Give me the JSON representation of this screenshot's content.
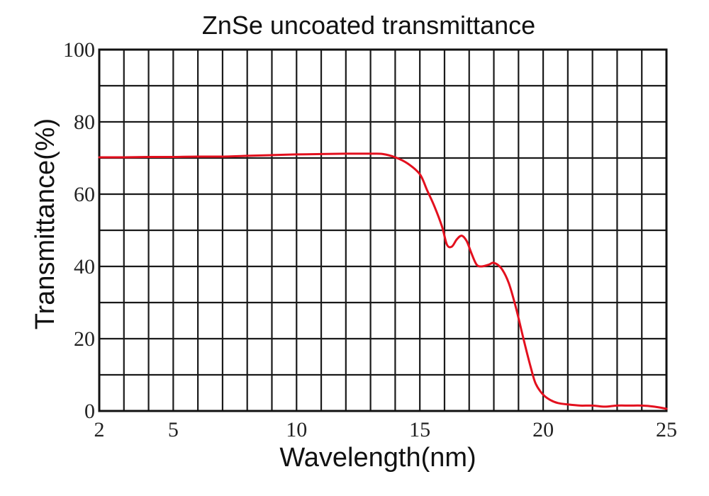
{
  "chart_data": {
    "type": "line",
    "title": "ZnSe uncoated transmittance",
    "xlabel": "Wavelength(nm)",
    "ylabel": "Transmittance(%)",
    "xlim": [
      2,
      25
    ],
    "ylim": [
      0,
      100
    ],
    "x_ticks": [
      "2",
      "5",
      "10",
      "15",
      "20",
      "25"
    ],
    "y_ticks": [
      "0",
      "20",
      "40",
      "60",
      "80",
      "100"
    ],
    "grid": true,
    "legend": "none",
    "colors": {
      "line": "#e3101e",
      "grid": "#1a1a1a",
      "text": "#111111"
    },
    "series": [
      {
        "x": [
          2,
          3,
          4,
          5,
          6,
          7,
          8,
          9,
          10,
          11,
          12,
          13,
          13.5,
          14,
          14.5,
          15,
          15.3,
          15.6,
          15.9,
          16.1,
          16.3,
          16.5,
          16.7,
          16.9,
          17.1,
          17.3,
          17.5,
          17.8,
          18.0,
          18.3,
          18.6,
          18.9,
          19.2,
          19.5,
          19.7,
          20.0,
          20.3,
          20.6,
          21.0,
          21.5,
          22.0,
          22.5,
          23.0,
          23.5,
          24.0,
          24.5,
          25.0
        ],
        "y": [
          70.2,
          70.2,
          70.3,
          70.3,
          70.4,
          70.4,
          70.6,
          70.8,
          71.0,
          71.1,
          71.2,
          71.2,
          71.1,
          70.2,
          68.5,
          65.5,
          61,
          56.5,
          51,
          46,
          45.5,
          47.5,
          48.5,
          47,
          43.5,
          40.5,
          40,
          40.5,
          41,
          39.5,
          35.5,
          28.5,
          20,
          12,
          7.5,
          4.5,
          3,
          2.2,
          1.8,
          1.5,
          1.5,
          1.2,
          1.5,
          1.5,
          1.5,
          1.2,
          0.6
        ]
      }
    ]
  }
}
